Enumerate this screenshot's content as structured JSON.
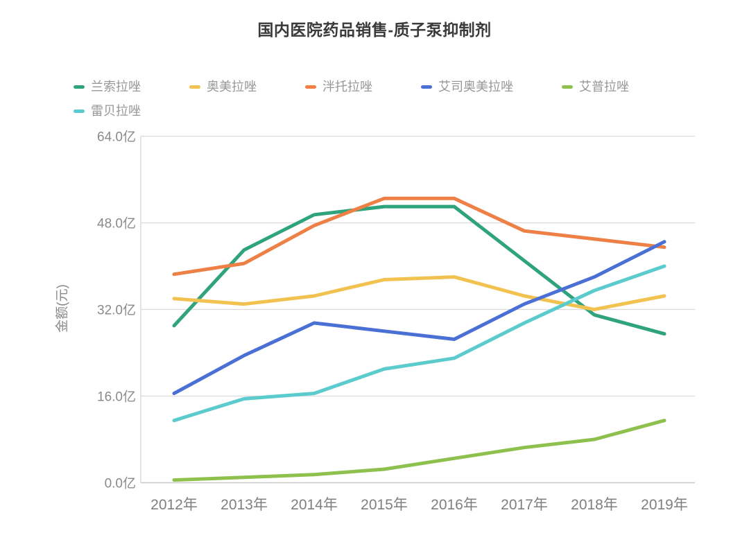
{
  "title": "国内医院药品销售-质子泵抑制剂",
  "y_axis_title": "金额(元)",
  "colors": {
    "grid": "#d9d9d9",
    "axis": "#c8c8c8",
    "tick_label": "#8a8a8a",
    "x_label": "#7f7f7f",
    "title_text": "#3a3a3a",
    "legend_text": "#979797"
  },
  "chart_data": {
    "type": "line",
    "title": "国内医院药品销售-质子泵抑制剂",
    "xlabel": "",
    "ylabel": "金额(元)",
    "ylim": [
      0,
      64
    ],
    "y_tick_step": 16,
    "y_tick_labels": [
      "0.0亿",
      "16.0亿",
      "32.0亿",
      "48.0亿",
      "64.0亿"
    ],
    "grid": true,
    "legend_position": "top",
    "categories": [
      "2012年",
      "2013年",
      "2014年",
      "2015年",
      "2016年",
      "2017年",
      "2018年",
      "2019年"
    ],
    "series": [
      {
        "name": "兰索拉唑",
        "color": "#2fa47c",
        "values": [
          29.0,
          43.0,
          49.5,
          51.0,
          51.0,
          41.0,
          31.0,
          27.5
        ]
      },
      {
        "name": "奥美拉唑",
        "color": "#f2c250",
        "values": [
          34.0,
          33.0,
          34.5,
          37.5,
          38.0,
          34.5,
          32.0,
          34.5
        ]
      },
      {
        "name": "泮托拉唑",
        "color": "#ee7f45",
        "values": [
          38.5,
          40.5,
          47.5,
          52.5,
          52.5,
          46.5,
          45.0,
          43.5
        ]
      },
      {
        "name": "艾司奥美拉唑",
        "color": "#4a70d6",
        "values": [
          16.5,
          23.5,
          29.5,
          28.0,
          26.5,
          33.0,
          38.0,
          44.5
        ]
      },
      {
        "name": "艾普拉唑",
        "color": "#8ec04e",
        "values": [
          0.5,
          1.0,
          1.5,
          2.5,
          4.5,
          6.5,
          8.0,
          11.5
        ]
      },
      {
        "name": "雷贝拉唑",
        "color": "#5bcbcd",
        "values": [
          11.5,
          15.5,
          16.5,
          21.0,
          23.0,
          29.5,
          35.5,
          40.0
        ]
      }
    ]
  }
}
